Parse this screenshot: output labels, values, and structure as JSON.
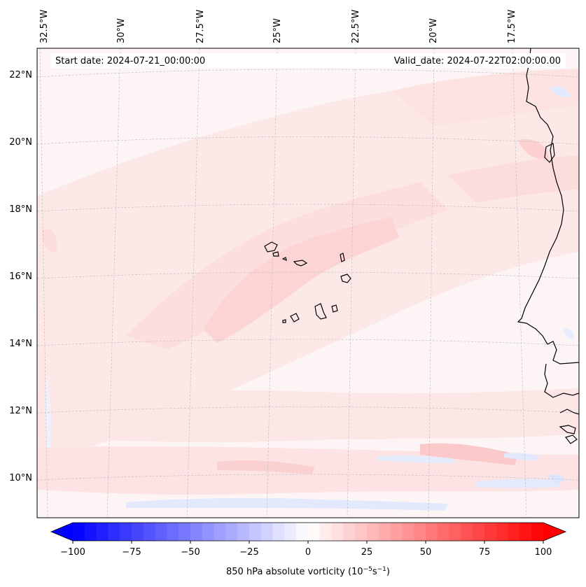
{
  "map": {
    "projection": "Lambert Conformal",
    "extent": {
      "lon_min": -32.5,
      "lon_max": -15.5,
      "lat_min": 9,
      "lat_max": 22.8
    },
    "start_date": "Start date: 2024-07-21_00:00:00",
    "valid_date": "Valid_date: 2024-07-22T02:00:00.00",
    "lon_labels": [
      "32.5°W",
      "30°W",
      "27.5°W",
      "25°W",
      "22.5°W",
      "20°W",
      "17.5°W"
    ],
    "lat_labels": [
      "22°N",
      "20°N",
      "18°N",
      "16°N",
      "14°N",
      "12°N",
      "10°N"
    ],
    "field": "850 hPa absolute vorticity",
    "islands": [
      "Santo Antão",
      "São Vicente",
      "Santa Luzia",
      "São Nicolau",
      "Sal",
      "Boa Vista",
      "Maio",
      "Santiago",
      "Fogo",
      "Brava"
    ]
  },
  "colorbar": {
    "ticks": [
      "−100",
      "−75",
      "−50",
      "−25",
      "0",
      "25",
      "50",
      "75",
      "100"
    ],
    "label_prefix": "850 hPa absolute vorticity (10",
    "label_exp1": "−5",
    "label_mid": "s",
    "label_exp2": "−1",
    "label_suffix": ")",
    "min": -100,
    "max": 100,
    "levels": 40,
    "cmap": "bwr",
    "color_low": "#0000ff",
    "color_mid": "#ffffff",
    "color_high": "#ff0000"
  }
}
